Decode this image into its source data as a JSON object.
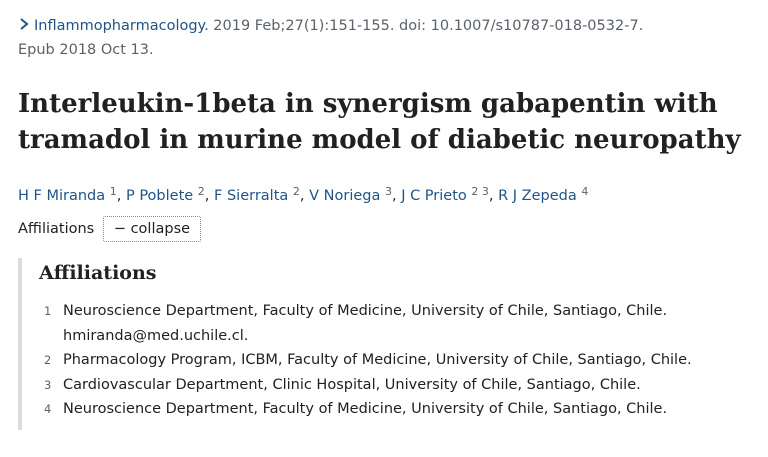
{
  "citation": {
    "journal": "Inflammopharmacology.",
    "details": "2019 Feb;27(1):151-155. doi: 10.1007/s10787-018-0532-7.",
    "epub": "Epub 2018 Oct 13."
  },
  "title": "Interleukin-1beta in synergism gabapentin with tramadol in murine model of diabetic neuropathy",
  "authors": [
    {
      "name": "H F Miranda",
      "aff": "1"
    },
    {
      "name": "P Poblete",
      "aff": "2"
    },
    {
      "name": "F Sierralta",
      "aff": "2"
    },
    {
      "name": "V Noriega",
      "aff": "3"
    },
    {
      "name": "J C Prieto",
      "aff": "2 3"
    },
    {
      "name": "R J Zepeda",
      "aff": "4"
    }
  ],
  "affiliations_toggle": {
    "label": "Affiliations",
    "button": "− collapse"
  },
  "affiliations": {
    "heading": "Affiliations",
    "items": [
      {
        "num": "1",
        "lines": [
          "Neuroscience Department, Faculty of Medicine, University of Chile, Santiago, Chile.",
          "hmiranda@med.uchile.cl."
        ]
      },
      {
        "num": "2",
        "lines": [
          "Pharmacology Program, ICBM, Faculty of Medicine, University of Chile, Santiago, Chile."
        ]
      },
      {
        "num": "3",
        "lines": [
          "Cardiovascular Department, Clinic Hospital, University of Chile, Santiago, Chile."
        ]
      },
      {
        "num": "4",
        "lines": [
          "Neuroscience Department, Faculty of Medicine, University of Chile, Santiago, Chile."
        ]
      }
    ]
  },
  "colors": {
    "link": "#20558a",
    "muted": "#5b616b",
    "text": "#212121",
    "panel_border": "#dcdcdc"
  }
}
